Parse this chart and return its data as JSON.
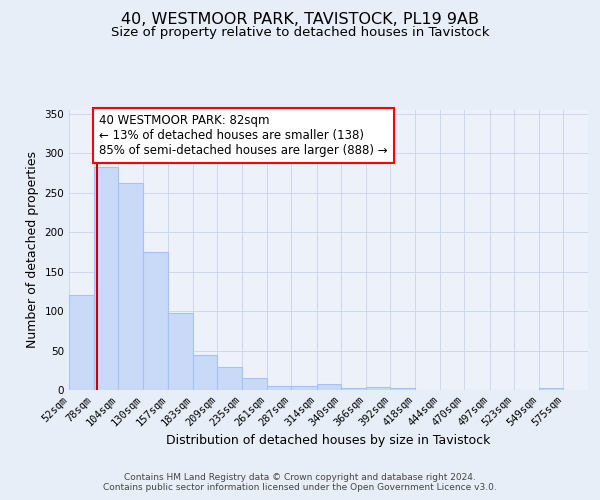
{
  "title": "40, WESTMOOR PARK, TAVISTOCK, PL19 9AB",
  "subtitle": "Size of property relative to detached houses in Tavistock",
  "xlabel": "Distribution of detached houses by size in Tavistock",
  "ylabel": "Number of detached properties",
  "bar_left_edges": [
    52,
    78,
    104,
    130,
    157,
    183,
    209,
    235,
    261,
    287,
    314,
    340,
    366,
    392,
    418,
    444,
    470,
    497,
    523,
    549
  ],
  "bar_widths": [
    26,
    26,
    26,
    27,
    26,
    26,
    26,
    26,
    26,
    27,
    26,
    26,
    26,
    26,
    26,
    26,
    27,
    26,
    26,
    26
  ],
  "bar_heights": [
    120,
    283,
    263,
    175,
    97,
    45,
    29,
    15,
    5,
    5,
    8,
    3,
    4,
    2,
    0,
    0,
    0,
    0,
    0,
    2
  ],
  "bar_facecolor": "#c9daf8",
  "bar_edgecolor": "#a4c2f4",
  "bar_linewidth": 0.8,
  "vline_x": 82,
  "vline_color": "#cc0000",
  "vline_linewidth": 1.5,
  "ylim": [
    0,
    355
  ],
  "yticks": [
    0,
    50,
    100,
    150,
    200,
    250,
    300,
    350
  ],
  "xtick_labels": [
    "52sqm",
    "78sqm",
    "104sqm",
    "130sqm",
    "157sqm",
    "183sqm",
    "209sqm",
    "235sqm",
    "261sqm",
    "287sqm",
    "314sqm",
    "340sqm",
    "366sqm",
    "392sqm",
    "418sqm",
    "444sqm",
    "470sqm",
    "497sqm",
    "523sqm",
    "549sqm",
    "575sqm"
  ],
  "xtick_positions": [
    52,
    78,
    104,
    130,
    157,
    183,
    209,
    235,
    261,
    287,
    314,
    340,
    366,
    392,
    418,
    444,
    470,
    497,
    523,
    549,
    575
  ],
  "annotation_text_line1": "40 WESTMOOR PARK: 82sqm",
  "annotation_text_line2": "← 13% of detached houses are smaller (138)",
  "annotation_text_line3": "85% of semi-detached houses are larger (888) →",
  "grid_color": "#c8d4e8",
  "grid_linewidth": 0.6,
  "bg_color": "#e8eef8",
  "plot_bg_color": "#edf2fa",
  "title_fontsize": 11.5,
  "subtitle_fontsize": 9.5,
  "axis_label_fontsize": 9,
  "tick_fontsize": 7.5,
  "ann_fontsize": 8.5,
  "footer_line1": "Contains HM Land Registry data © Crown copyright and database right 2024.",
  "footer_line2": "Contains public sector information licensed under the Open Government Licence v3.0."
}
